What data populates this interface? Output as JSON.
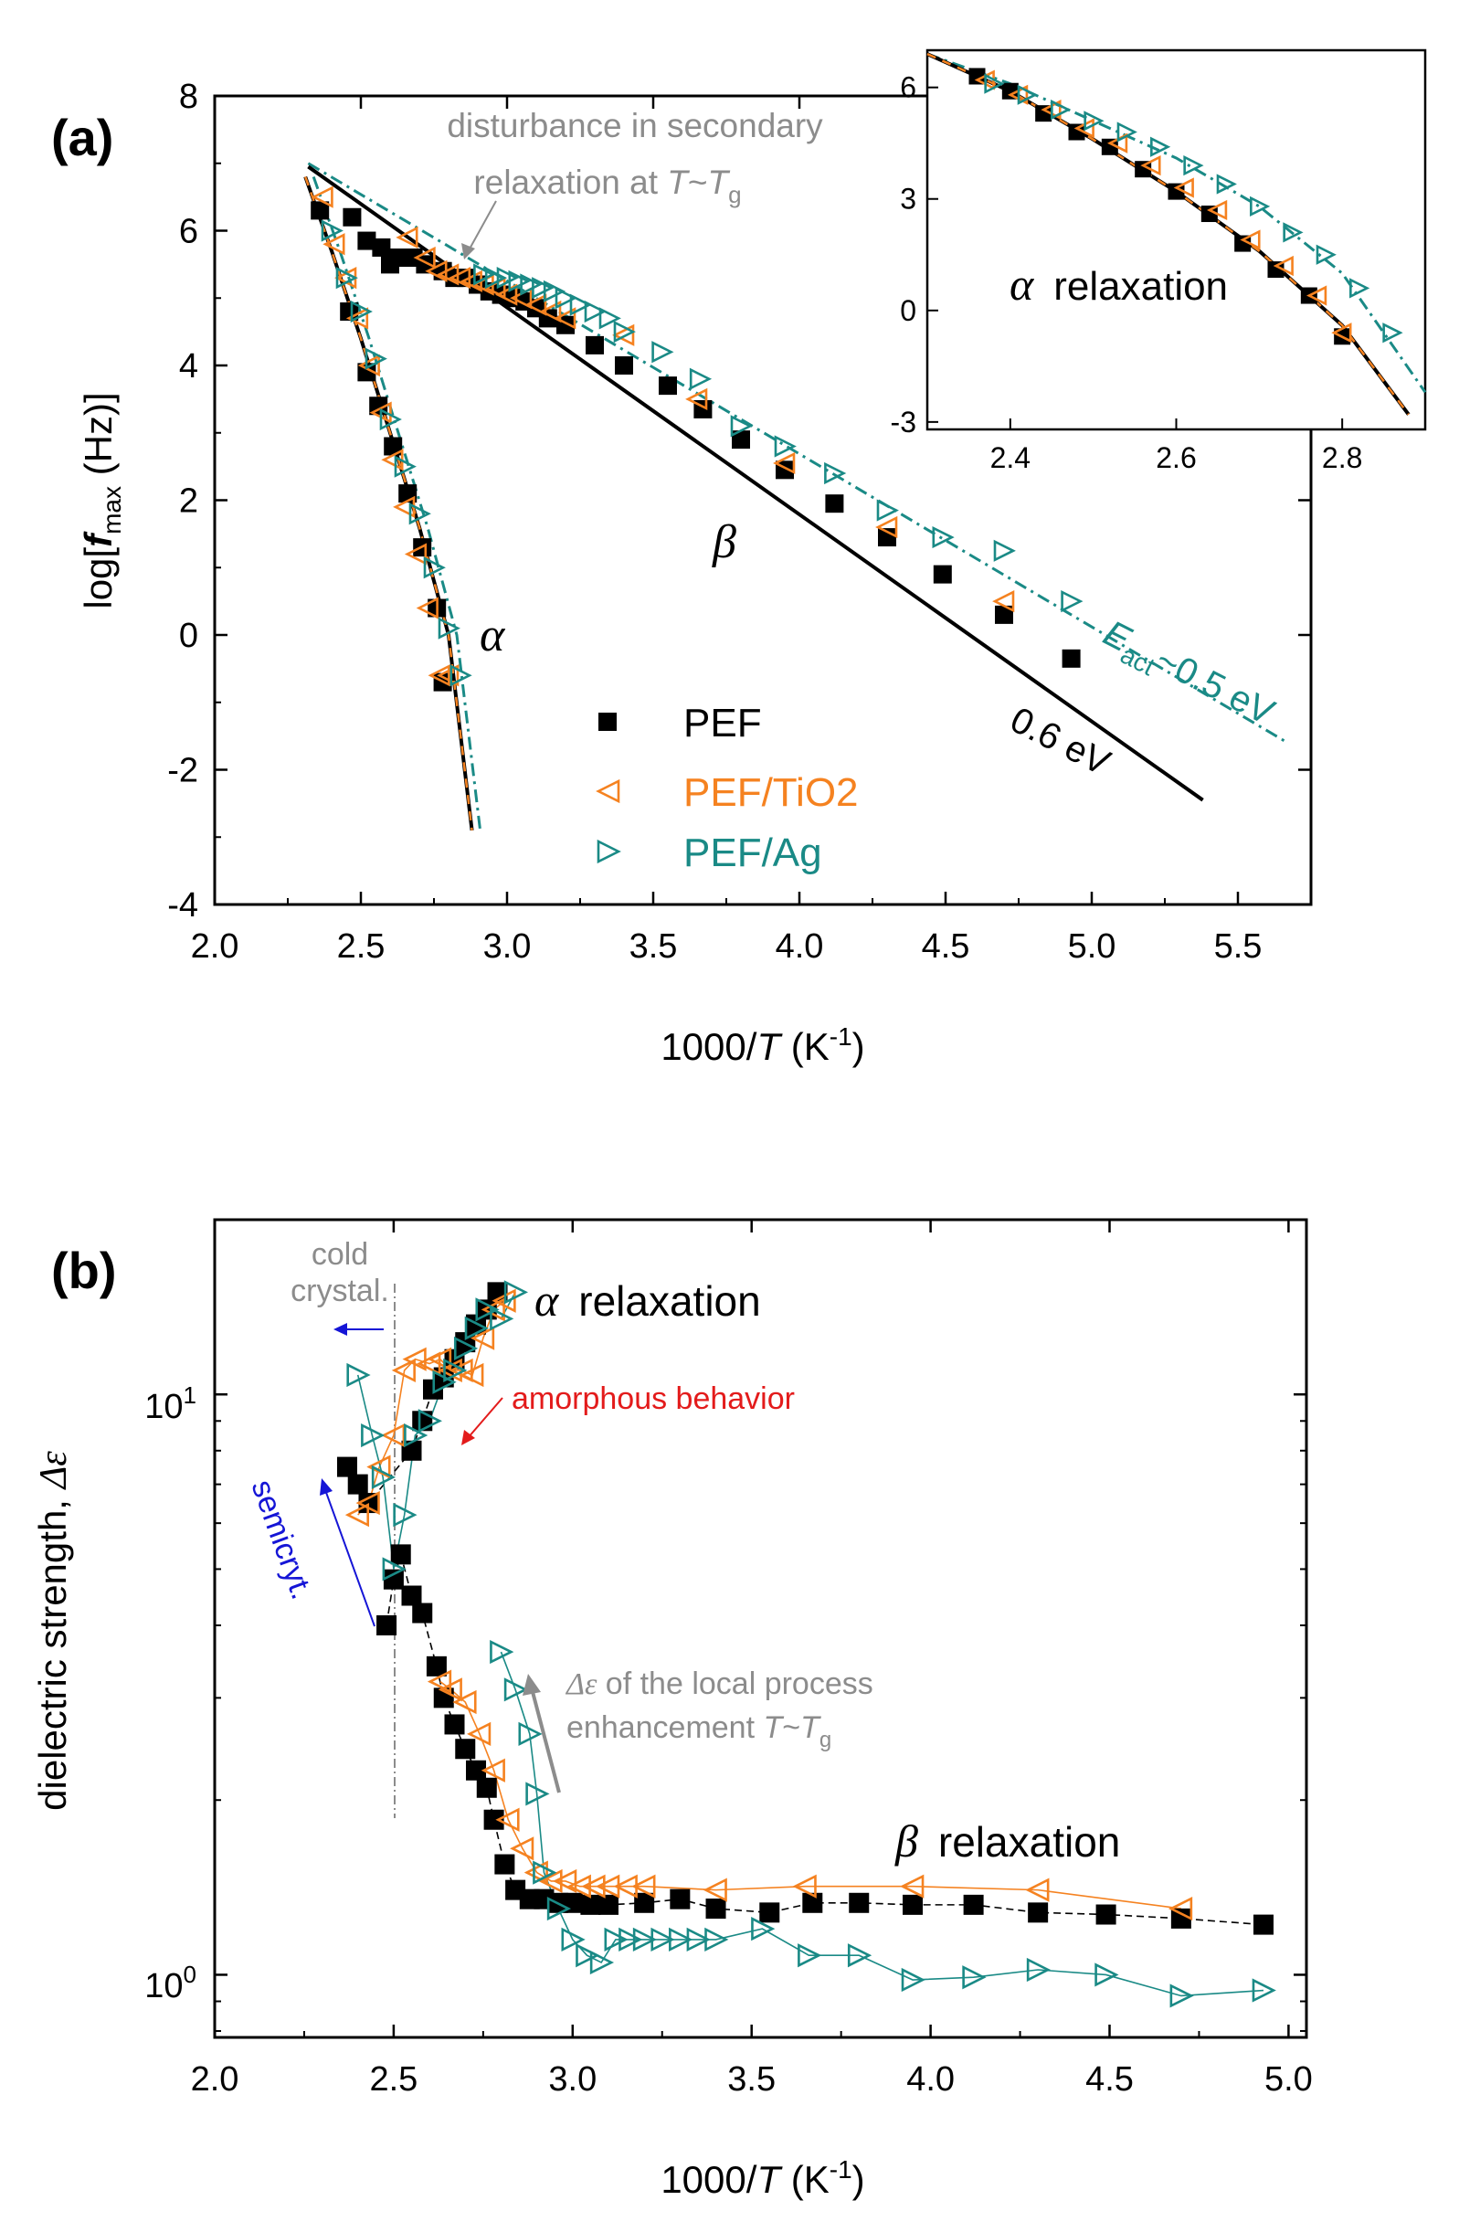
{
  "panel_a": {
    "label": "(a)",
    "xlabel_pre": "1000/",
    "xlabel_var": "T",
    "xlabel_post": " (K",
    "xlabel_sup": "-1",
    "xlabel_close": ")",
    "ylabel_pre": "log[",
    "ylabel_var": "f",
    "ylabel_sub": "max",
    "ylabel_post": " (Hz)]",
    "xticks": [
      "2.0",
      "2.5",
      "3.0",
      "3.5",
      "4.0",
      "4.5",
      "5.0",
      "5.5"
    ],
    "yticks": [
      "-4",
      "-2",
      "0",
      "2",
      "4",
      "6",
      "8"
    ],
    "annot_disturb_1": "disturbance in secondary",
    "annot_disturb_2_pre": "relaxation at ",
    "annot_disturb_2_T": "T",
    "annot_disturb_2_mid": "~",
    "annot_disturb_2_Tg": "T",
    "annot_disturb_2_sub": "g",
    "annot_beta": "β",
    "annot_alpha": "α",
    "annot_eact_E": "E",
    "annot_eact_sub": "act",
    "annot_eact_rest": "~0.5 eV",
    "annot_06": "0.6 eV",
    "legend": [
      "PEF",
      "PEF/TiO2",
      "PEF/Ag"
    ],
    "inset": {
      "xticks": [
        "2.4",
        "2.6",
        "2.8"
      ],
      "yticks": [
        "-3",
        "0",
        "3",
        "6"
      ],
      "label_alpha": "α",
      "label_rest": "relaxation"
    }
  },
  "panel_b": {
    "label": "(b)",
    "xlabel_pre": "1000/",
    "xlabel_var": "T",
    "xlabel_post": " (K",
    "xlabel_sup": "-1",
    "xlabel_close": ")",
    "ylabel_pre": "dielectric strength, ",
    "ylabel_sym": "Δε",
    "xticks": [
      "2.0",
      "2.5",
      "3.0",
      "3.5",
      "4.0",
      "4.5",
      "5.0"
    ],
    "ytick_1_base": "10",
    "ytick_1_exp": "1",
    "ytick_0_base": "10",
    "ytick_0_exp": "0",
    "annot_cold_1": "cold",
    "annot_cold_2": "crystal.",
    "annot_alpha_sym": "α",
    "annot_alpha_rest": "relaxation",
    "annot_amorph": "amorphous behavior",
    "annot_semicryt": "semicryt.",
    "annot_local_sym": "Δε",
    "annot_local_rest": " of the local process",
    "annot_enh_pre": "enhancement ",
    "annot_enh_T": "T",
    "annot_enh_mid": "~",
    "annot_enh_Tg": "T",
    "annot_enh_sub": "g",
    "annot_beta_sym": "β",
    "annot_beta_rest": "relaxation"
  },
  "colors": {
    "PEF": "#000000",
    "TiO2": "#f58220",
    "Ag": "#1a8a86",
    "gray": "#8c8c8c",
    "red": "#e31b1b",
    "blue": "#1515d6"
  },
  "chart_data": [
    {
      "type": "scatter",
      "title": "(a)",
      "xlabel": "1000/T (K-1)",
      "ylabel": "log[fmax (Hz)]",
      "xlim": [
        2.0,
        5.75
      ],
      "ylim": [
        -4,
        8
      ],
      "series": [
        {
          "name": "PEF",
          "marker": "square",
          "alpha_x": [
            2.36,
            2.46,
            2.52,
            2.56,
            2.61,
            2.66,
            2.71,
            2.76,
            2.78
          ],
          "alpha_y": [
            6.3,
            4.8,
            3.9,
            3.4,
            2.8,
            2.1,
            1.3,
            0.4,
            -0.7
          ],
          "beta_x": [
            2.47,
            2.52,
            2.57,
            2.6,
            2.62,
            2.68,
            2.72,
            2.78,
            2.82,
            2.86,
            2.9,
            2.94,
            2.98,
            3.02,
            3.06,
            3.1,
            3.14,
            3.2,
            3.3,
            3.4,
            3.55,
            3.67,
            3.8,
            3.95,
            4.12,
            4.3,
            4.49,
            4.7,
            4.93
          ],
          "beta_y": [
            6.2,
            5.85,
            5.75,
            5.5,
            5.6,
            5.6,
            5.5,
            5.4,
            5.3,
            5.3,
            5.2,
            5.1,
            5.05,
            5.0,
            4.95,
            4.85,
            4.7,
            4.6,
            4.3,
            4.0,
            3.7,
            3.35,
            2.9,
            2.45,
            1.95,
            1.45,
            0.9,
            0.3,
            -0.35
          ]
        },
        {
          "name": "PEF/TiO2",
          "marker": "triangle-left",
          "alpha_x": [
            2.37,
            2.41,
            2.45,
            2.49,
            2.53,
            2.57,
            2.61,
            2.65,
            2.69,
            2.73,
            2.77,
            2.8
          ],
          "alpha_y": [
            6.5,
            5.8,
            5.3,
            4.7,
            4.0,
            3.3,
            2.6,
            1.9,
            1.2,
            0.4,
            -0.6,
            -0.6
          ],
          "beta_x": [
            2.66,
            2.72,
            2.76,
            2.8,
            2.84,
            2.88,
            2.92,
            2.96,
            3.0,
            3.05,
            3.1,
            3.15,
            3.2,
            3.4,
            3.65,
            3.95,
            4.3,
            4.7
          ],
          "beta_y": [
            5.9,
            5.6,
            5.4,
            5.35,
            5.3,
            5.25,
            5.2,
            5.15,
            5.05,
            5.0,
            4.9,
            4.8,
            4.7,
            4.45,
            3.5,
            2.55,
            1.6,
            0.5
          ]
        },
        {
          "name": "PEF/Ag",
          "marker": "triangle-right",
          "alpha_x": [
            2.4,
            2.45,
            2.5,
            2.55,
            2.6,
            2.65,
            2.7,
            2.75,
            2.8,
            2.84
          ],
          "alpha_y": [
            6.0,
            5.3,
            4.8,
            4.1,
            3.2,
            2.5,
            1.8,
            1.0,
            0.1,
            -0.6
          ],
          "beta_x": [
            2.92,
            2.96,
            3.0,
            3.04,
            3.08,
            3.12,
            3.16,
            3.2,
            3.25,
            3.3,
            3.35,
            3.4,
            3.53,
            3.66,
            3.8,
            3.95,
            4.12,
            4.3,
            4.49,
            4.7,
            4.93
          ],
          "beta_y": [
            5.35,
            5.3,
            5.3,
            5.25,
            5.2,
            5.15,
            5.1,
            5.0,
            4.9,
            4.8,
            4.7,
            4.5,
            4.2,
            3.8,
            3.1,
            2.8,
            2.4,
            1.85,
            1.45,
            1.25,
            0.5
          ]
        }
      ],
      "fit_lines": {
        "PEF_beta": {
          "x": [
            2.32,
            5.38
          ],
          "y": [
            6.95,
            -2.45
          ],
          "label": "0.6 eV"
        },
        "Ag_beta": {
          "x": [
            2.32,
            5.67
          ],
          "y": [
            7.0,
            -1.6
          ],
          "label": "Eact~0.5 eV"
        },
        "VFT_alpha": {
          "x": [
            2.31,
            2.4,
            2.5,
            2.6,
            2.7,
            2.8,
            2.88
          ],
          "y": [
            6.8,
            5.7,
            4.4,
            3.0,
            1.6,
            0.0,
            -2.9
          ]
        }
      }
    },
    {
      "type": "scatter",
      "title": "inset: alpha relaxation",
      "xlim": [
        2.3,
        2.9
      ],
      "ylim": [
        -3.2,
        7.0
      ],
      "series": [
        {
          "name": "PEF",
          "x": [
            2.36,
            2.4,
            2.44,
            2.48,
            2.52,
            2.56,
            2.6,
            2.64,
            2.68,
            2.72,
            2.76,
            2.8
          ],
          "y": [
            6.3,
            5.9,
            5.3,
            4.8,
            4.4,
            3.8,
            3.2,
            2.6,
            1.8,
            1.1,
            0.4,
            -0.7
          ]
        },
        {
          "name": "PEF/TiO2",
          "x": [
            2.37,
            2.41,
            2.45,
            2.49,
            2.53,
            2.57,
            2.61,
            2.65,
            2.69,
            2.73,
            2.77,
            2.8
          ],
          "y": [
            6.2,
            5.8,
            5.4,
            4.9,
            4.5,
            3.9,
            3.3,
            2.7,
            1.9,
            1.2,
            0.4,
            -0.6
          ]
        },
        {
          "name": "PEF/Ag",
          "x": [
            2.38,
            2.42,
            2.46,
            2.5,
            2.54,
            2.58,
            2.62,
            2.66,
            2.7,
            2.74,
            2.78,
            2.82,
            2.86
          ],
          "y": [
            6.1,
            5.8,
            5.4,
            5.1,
            4.8,
            4.4,
            3.9,
            3.4,
            2.8,
            2.1,
            1.5,
            0.6,
            -0.6
          ]
        }
      ]
    },
    {
      "type": "scatter",
      "title": "(b)",
      "xlabel": "1000/T (K-1)",
      "ylabel": "dielectric strength, Δε",
      "yscale": "log",
      "xlim": [
        2.0,
        5.05
      ],
      "ylim": [
        0.78,
        20
      ],
      "series": [
        {
          "name": "PEF",
          "alpha_x": [
            2.37,
            2.4,
            2.43,
            2.55,
            2.58,
            2.61,
            2.64,
            2.67,
            2.7,
            2.73,
            2.76,
            2.79
          ],
          "alpha_y": [
            7.5,
            7.0,
            6.5,
            8.0,
            9.0,
            10.2,
            10.7,
            11.5,
            12.3,
            13.2,
            14.0,
            15.0
          ],
          "beta_x": [
            2.48,
            2.5,
            2.52,
            2.55,
            2.58,
            2.62,
            2.64,
            2.67,
            2.7,
            2.73,
            2.76,
            2.78,
            2.81,
            2.84,
            2.88,
            2.92,
            2.96,
            3.0,
            3.05,
            3.1,
            3.2,
            3.3,
            3.4,
            3.55,
            3.67,
            3.8,
            3.95,
            4.12,
            4.3,
            4.49,
            4.7,
            4.93
          ],
          "beta_y": [
            4.0,
            4.8,
            5.3,
            4.5,
            4.2,
            3.4,
            3.0,
            2.7,
            2.45,
            2.25,
            2.1,
            1.85,
            1.55,
            1.4,
            1.35,
            1.35,
            1.33,
            1.33,
            1.32,
            1.32,
            1.33,
            1.35,
            1.3,
            1.28,
            1.33,
            1.33,
            1.32,
            1.32,
            1.28,
            1.27,
            1.25,
            1.22
          ]
        },
        {
          "name": "PEF/TiO2",
          "alpha_x": [
            2.4,
            2.43,
            2.46,
            2.5,
            2.53,
            2.56,
            2.6,
            2.63,
            2.66,
            2.69,
            2.72,
            2.75,
            2.78,
            2.81
          ],
          "alpha_y": [
            6.2,
            6.5,
            7.5,
            8.5,
            11.0,
            11.5,
            11.3,
            11.5,
            11.0,
            11.0,
            10.8,
            12.5,
            14.0,
            14.5
          ],
          "beta_x": [
            2.63,
            2.66,
            2.7,
            2.74,
            2.78,
            2.82,
            2.86,
            2.9,
            2.94,
            2.98,
            3.02,
            3.06,
            3.1,
            3.15,
            3.2,
            3.4,
            3.65,
            3.95,
            4.3,
            4.7
          ],
          "beta_y": [
            3.2,
            3.1,
            2.95,
            2.6,
            2.25,
            1.85,
            1.65,
            1.5,
            1.45,
            1.45,
            1.42,
            1.42,
            1.42,
            1.42,
            1.42,
            1.4,
            1.42,
            1.42,
            1.4,
            1.3
          ]
        },
        {
          "name": "PEF/Ag",
          "alpha_x": [
            2.4,
            2.44,
            2.47,
            2.5,
            2.53,
            2.56,
            2.6,
            2.64,
            2.67,
            2.7,
            2.73,
            2.76,
            2.8,
            2.84
          ],
          "alpha_y": [
            10.8,
            8.5,
            7.2,
            5.0,
            6.2,
            8.5,
            9.0,
            10.5,
            11.0,
            12.0,
            13.0,
            14.0,
            13.5,
            15.0
          ],
          "beta_x": [
            2.8,
            2.84,
            2.88,
            2.9,
            2.92,
            2.96,
            3.0,
            3.04,
            3.08,
            3.12,
            3.16,
            3.2,
            3.25,
            3.3,
            3.35,
            3.4,
            3.53,
            3.66,
            3.8,
            3.95,
            4.12,
            4.3,
            4.49,
            4.7,
            4.93
          ],
          "beta_y": [
            3.6,
            3.1,
            2.6,
            2.05,
            1.5,
            1.3,
            1.15,
            1.08,
            1.05,
            1.15,
            1.15,
            1.15,
            1.15,
            1.15,
            1.15,
            1.15,
            1.2,
            1.08,
            1.08,
            0.98,
            0.99,
            1.02,
            1.0,
            0.92,
            0.94
          ]
        }
      ]
    }
  ]
}
